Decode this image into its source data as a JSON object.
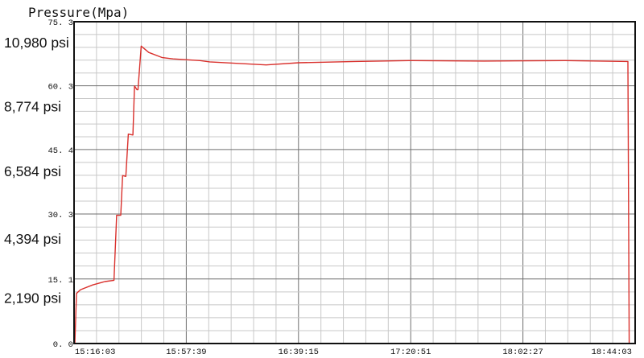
{
  "chart_data": {
    "type": "line",
    "title": "Pressure(Mpa)",
    "xlabel": "",
    "ylabel": "",
    "x_axis": {
      "type": "time",
      "range": [
        "15:16:03",
        "18:44:03"
      ],
      "tick_labels": [
        "15:16:03",
        "15:57:39",
        "16:39:15",
        "17:20:51",
        "18:02:27",
        "18:44:03"
      ],
      "minor_divisions": 5
    },
    "y_axis": {
      "range": [
        0,
        75.3
      ],
      "tick_values": [
        0.0,
        15.1,
        30.3,
        45.4,
        60.3,
        75.3
      ],
      "tick_labels": [
        "0. 0",
        "15. 1",
        "30. 3",
        "45. 4",
        "60. 3",
        "75. 3"
      ],
      "minor_divisions": 5
    },
    "annotations": [
      {
        "text": "10,980 psi",
        "y": 70.4
      },
      {
        "text": "8,774 psi",
        "y": 55.4
      },
      {
        "text": "6,584 psi",
        "y": 40.3
      },
      {
        "text": "4,394 psi",
        "y": 24.5
      },
      {
        "text": "2,190 psi",
        "y": 10.6
      }
    ],
    "grid": true,
    "legend": "none",
    "line_color": "#d9302c",
    "grid_color": "#c8c8c8",
    "major_grid_color": "#6f6f6f",
    "series": [
      {
        "x": [
          "15:16:03",
          "15:16:21",
          "15:16:57",
          "15:18:27",
          "15:22:57",
          "15:27:27",
          "15:30:51",
          "15:31:51",
          "15:33:21",
          "15:34:03",
          "15:35:15",
          "15:36:09",
          "15:37:51",
          "15:38:27",
          "15:39:21",
          "15:39:45",
          "15:40:57",
          "15:43:45",
          "15:48:45",
          "15:52:45",
          "16:02:45",
          "16:06:21",
          "16:27:15",
          "16:39:15",
          "17:00:15",
          "17:21:09",
          "17:48:03",
          "18:18:03",
          "18:41:21",
          "18:41:51"
        ],
        "y": [
          0.0,
          0.0,
          11.7,
          12.6,
          13.7,
          14.5,
          14.8,
          30.0,
          30.0,
          39.3,
          39.1,
          49.0,
          48.8,
          60.3,
          59.4,
          59.4,
          69.6,
          68.1,
          66.9,
          66.6,
          66.2,
          65.9,
          65.2,
          65.7,
          66.0,
          66.2,
          66.1,
          66.2,
          66.0,
          0.0
        ]
      }
    ]
  }
}
